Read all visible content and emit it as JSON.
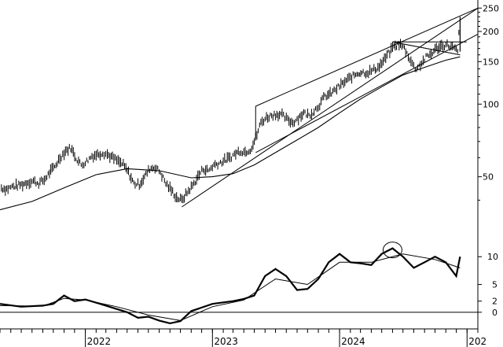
{
  "chart_data": [
    {
      "type": "line",
      "panel": "price",
      "scale": "log",
      "ylim": [
        33,
        270
      ],
      "y_ticks": [
        {
          "value": 250,
          "label": "250"
        },
        {
          "value": 200,
          "label": "200"
        },
        {
          "value": 150,
          "label": "150"
        },
        {
          "value": 100,
          "label": "100"
        },
        {
          "value": 50,
          "label": "50"
        }
      ],
      "x_range": [
        "2021-05-01",
        "2025-02-01"
      ],
      "x_year_labels": [
        {
          "date": "2022-01-01",
          "label": "2022"
        },
        {
          "date": "2023-01-01",
          "label": "2023"
        },
        {
          "date": "2024-01-01",
          "label": "2024"
        },
        {
          "date": "2025-01-01",
          "label": "202"
        }
      ],
      "series": [
        {
          "kind": "price-bars",
          "points": [
            [
              "2021-05-05",
              45
            ],
            [
              "2021-05-20",
              44.5
            ],
            [
              "2021-06-05",
              45.5
            ],
            [
              "2021-06-20",
              46
            ],
            [
              "2021-07-05",
              46.5
            ],
            [
              "2021-07-20",
              47.5
            ],
            [
              "2021-08-05",
              48
            ],
            [
              "2021-08-20",
              47
            ],
            [
              "2021-09-05",
              48.5
            ],
            [
              "2021-09-20",
              52
            ],
            [
              "2021-10-05",
              55
            ],
            [
              "2021-10-20",
              60
            ],
            [
              "2021-11-05",
              64
            ],
            [
              "2021-11-20",
              66
            ],
            [
              "2021-12-05",
              60
            ],
            [
              "2021-12-20",
              56
            ],
            [
              "2022-01-05",
              58
            ],
            [
              "2022-01-20",
              61
            ],
            [
              "2022-02-05",
              62
            ],
            [
              "2022-02-20",
              63
            ],
            [
              "2022-03-05",
              62
            ],
            [
              "2022-03-20",
              60
            ],
            [
              "2022-04-05",
              58
            ],
            [
              "2022-04-20",
              56
            ],
            [
              "2022-05-05",
              52
            ],
            [
              "2022-05-20",
              47
            ],
            [
              "2022-06-05",
              46.5
            ],
            [
              "2022-06-20",
              50
            ],
            [
              "2022-07-05",
              54
            ],
            [
              "2022-07-20",
              55
            ],
            [
              "2022-08-05",
              52
            ],
            [
              "2022-08-20",
              47
            ],
            [
              "2022-09-05",
              44
            ],
            [
              "2022-09-20",
              41
            ],
            [
              "2022-10-05",
              40
            ],
            [
              "2022-10-20",
              43
            ],
            [
              "2022-11-05",
              46
            ],
            [
              "2022-11-20",
              50
            ],
            [
              "2022-12-05",
              54
            ],
            [
              "2022-12-20",
              53
            ],
            [
              "2023-01-05",
              56
            ],
            [
              "2023-01-20",
              57
            ],
            [
              "2023-02-05",
              58.5
            ],
            [
              "2023-02-20",
              60
            ],
            [
              "2023-03-05",
              62
            ],
            [
              "2023-03-20",
              64
            ],
            [
              "2023-04-05",
              63.5
            ],
            [
              "2023-04-20",
              65
            ],
            [
              "2023-05-05",
              72
            ],
            [
              "2023-05-20",
              84
            ],
            [
              "2023-06-05",
              88
            ],
            [
              "2023-06-20",
              90
            ],
            [
              "2023-07-05",
              91
            ],
            [
              "2023-07-20",
              90
            ],
            [
              "2023-08-05",
              86
            ],
            [
              "2023-08-20",
              84
            ],
            [
              "2023-09-05",
              88
            ],
            [
              "2023-09-20",
              92
            ],
            [
              "2023-10-05",
              90
            ],
            [
              "2023-10-20",
              94
            ],
            [
              "2023-11-05",
              100
            ],
            [
              "2023-11-20",
              108
            ],
            [
              "2023-12-05",
              110
            ],
            [
              "2023-12-20",
              115
            ],
            [
              "2024-01-05",
              120
            ],
            [
              "2024-01-20",
              125
            ],
            [
              "2024-02-05",
              130
            ],
            [
              "2024-02-20",
              134
            ],
            [
              "2024-03-05",
              136
            ],
            [
              "2024-03-20",
              135
            ],
            [
              "2024-04-05",
              138
            ],
            [
              "2024-04-20",
              142
            ],
            [
              "2024-05-05",
              150
            ],
            [
              "2024-05-20",
              162
            ],
            [
              "2024-06-05",
              172
            ],
            [
              "2024-06-20",
              178
            ],
            [
              "2024-07-05",
              170
            ],
            [
              "2024-07-20",
              155
            ],
            [
              "2024-08-05",
              140
            ],
            [
              "2024-08-20",
              146
            ],
            [
              "2024-09-05",
              156
            ],
            [
              "2024-09-20",
              162
            ],
            [
              "2024-10-05",
              170
            ],
            [
              "2024-10-20",
              175
            ],
            [
              "2024-11-05",
              176
            ],
            [
              "2024-11-20",
              172
            ],
            [
              "2024-12-05",
              165
            ],
            [
              "2024-12-12",
              230
            ]
          ]
        },
        {
          "kind": "moving-average",
          "points": [
            [
              "2021-05-01",
              36.5
            ],
            [
              "2021-08-01",
              39.5
            ],
            [
              "2021-11-01",
              45
            ],
            [
              "2022-02-01",
              51
            ],
            [
              "2022-05-01",
              54
            ],
            [
              "2022-08-01",
              53
            ],
            [
              "2022-11-01",
              49.5
            ],
            [
              "2023-01-01",
              50
            ],
            [
              "2023-03-01",
              51.5
            ],
            [
              "2023-05-01",
              56
            ],
            [
              "2023-07-01",
              63
            ],
            [
              "2023-09-01",
              71
            ],
            [
              "2023-11-01",
              80
            ],
            [
              "2024-01-01",
              92
            ],
            [
              "2024-03-01",
              105
            ],
            [
              "2024-05-01",
              118
            ],
            [
              "2024-07-01",
              132
            ],
            [
              "2024-09-01",
              142
            ],
            [
              "2024-11-01",
              152
            ],
            [
              "2024-12-12",
              157
            ]
          ]
        },
        {
          "kind": "trendline",
          "points": [
            [
              "2022-10-05",
              37.5
            ],
            [
              "2025-02-01",
              250
            ]
          ]
        },
        {
          "kind": "trendline",
          "points": [
            [
              "2023-05-05",
              98
            ],
            [
              "2025-02-01",
              250
            ]
          ]
        },
        {
          "kind": "trendline",
          "points": [
            [
              "2023-05-05",
              63
            ],
            [
              "2025-02-01",
              195
            ]
          ]
        },
        {
          "kind": "line",
          "points": [
            [
              "2024-06-01",
              181
            ],
            [
              "2024-12-31",
              181
            ]
          ]
        },
        {
          "kind": "line",
          "points": [
            [
              "2024-06-01",
              181
            ],
            [
              "2024-12-12",
              160
            ]
          ]
        },
        {
          "kind": "line",
          "points": [
            [
              "2024-06-01",
              181
            ],
            [
              "2024-06-01",
              165
            ]
          ]
        }
      ]
    },
    {
      "type": "line",
      "panel": "indicator",
      "ylim": [
        -3,
        14
      ],
      "y_ticks": [
        {
          "value": 10,
          "label": "10"
        },
        {
          "value": 5,
          "label": "5"
        },
        {
          "value": 2,
          "label": "2"
        },
        {
          "value": 0,
          "label": "0"
        }
      ],
      "reference_line": 0,
      "series": [
        {
          "kind": "oscillator",
          "points": [
            [
              "2021-05-01",
              1.5
            ],
            [
              "2021-07-01",
              1
            ],
            [
              "2021-09-01",
              1.2
            ],
            [
              "2021-10-01",
              1.5
            ],
            [
              "2021-11-01",
              3
            ],
            [
              "2021-12-01",
              2
            ],
            [
              "2022-01-01",
              2.3
            ],
            [
              "2022-03-01",
              1.2
            ],
            [
              "2022-05-01",
              0
            ],
            [
              "2022-06-01",
              -1
            ],
            [
              "2022-07-01",
              -0.8
            ],
            [
              "2022-08-01",
              -1.5
            ],
            [
              "2022-09-01",
              -2
            ],
            [
              "2022-10-01",
              -1.6
            ],
            [
              "2022-11-01",
              0.2
            ],
            [
              "2023-01-01",
              1.5
            ],
            [
              "2023-03-01",
              2
            ],
            [
              "2023-04-01",
              2.4
            ],
            [
              "2023-05-01",
              3
            ],
            [
              "2023-06-01",
              6.5
            ],
            [
              "2023-07-01",
              7.8
            ],
            [
              "2023-08-01",
              6.5
            ],
            [
              "2023-09-01",
              4
            ],
            [
              "2023-10-01",
              4.2
            ],
            [
              "2023-11-01",
              6
            ],
            [
              "2023-12-01",
              9
            ],
            [
              "2024-01-01",
              10.5
            ],
            [
              "2024-02-01",
              9
            ],
            [
              "2024-03-01",
              8.8
            ],
            [
              "2024-04-01",
              8.5
            ],
            [
              "2024-05-01",
              10.5
            ],
            [
              "2024-06-01",
              11.5
            ],
            [
              "2024-07-01",
              10
            ],
            [
              "2024-08-01",
              8
            ],
            [
              "2024-09-01",
              9
            ],
            [
              "2024-10-01",
              10
            ],
            [
              "2024-11-01",
              9
            ],
            [
              "2024-12-01",
              6.5
            ],
            [
              "2024-12-12",
              10
            ]
          ]
        },
        {
          "kind": "signal",
          "points": [
            [
              "2021-05-01",
              1.2
            ],
            [
              "2021-09-01",
              1.1
            ],
            [
              "2021-11-01",
              2.5
            ],
            [
              "2022-01-01",
              2.2
            ],
            [
              "2022-04-01",
              1
            ],
            [
              "2022-07-01",
              -0.5
            ],
            [
              "2022-10-01",
              -1.5
            ],
            [
              "2023-01-01",
              1
            ],
            [
              "2023-04-01",
              2.2
            ],
            [
              "2023-07-01",
              6
            ],
            [
              "2023-10-01",
              5
            ],
            [
              "2024-01-01",
              9
            ],
            [
              "2024-04-01",
              9
            ],
            [
              "2024-07-01",
              10.5
            ],
            [
              "2024-10-01",
              9.5
            ],
            [
              "2024-12-12",
              8
            ]
          ]
        }
      ]
    }
  ]
}
